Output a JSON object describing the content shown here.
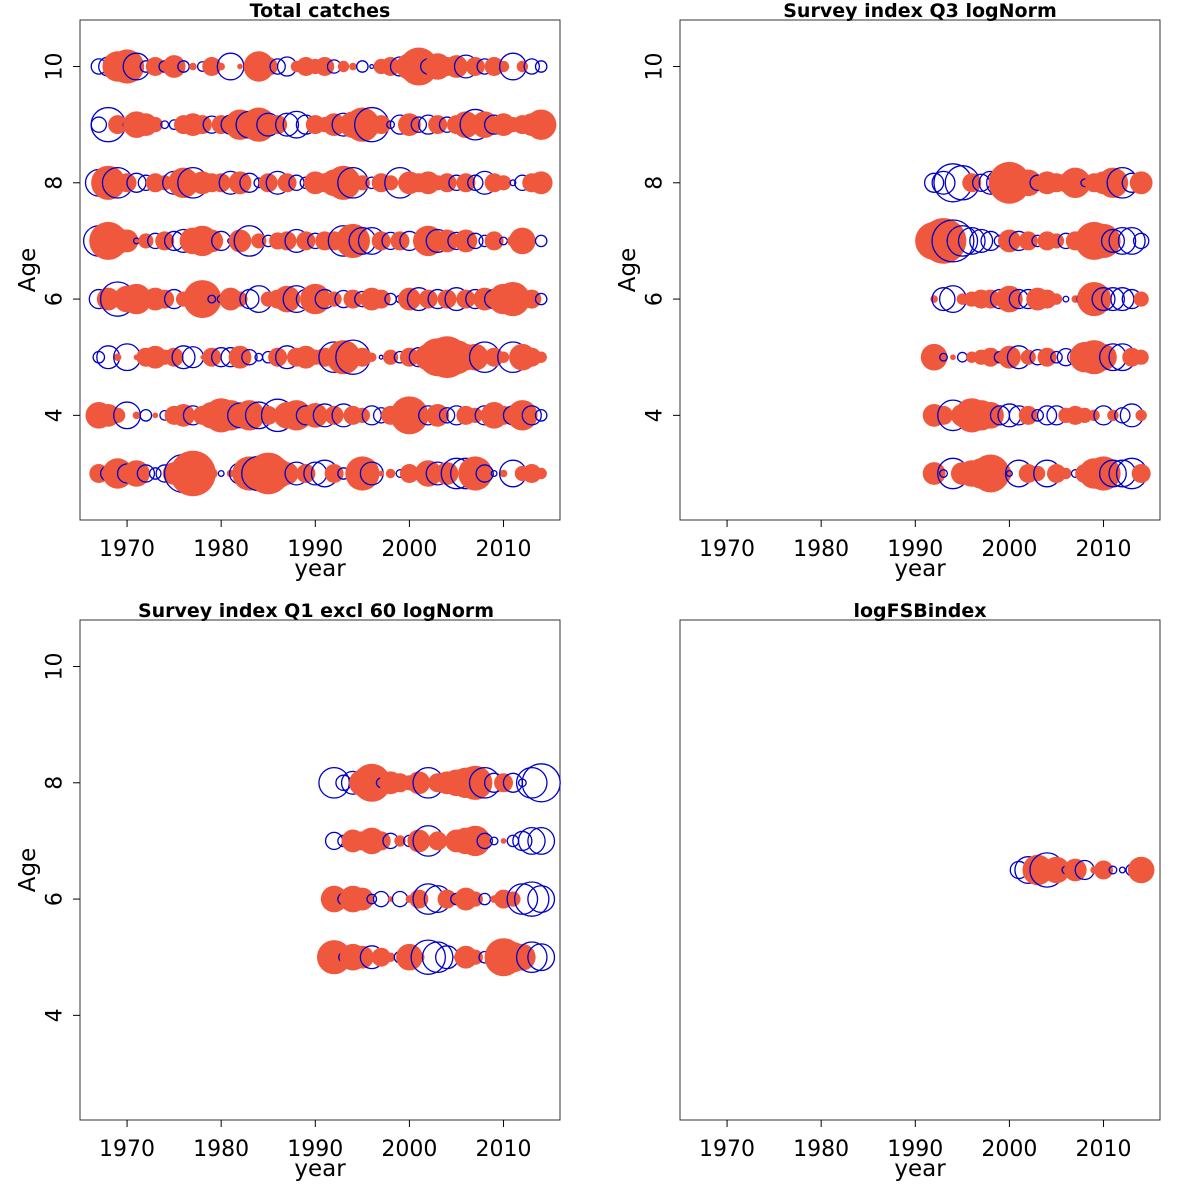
{
  "colors": {
    "positive": "#f0583e",
    "negative": "#0000cc"
  },
  "chart_data": [
    {
      "type": "scatter",
      "title": "Total catches",
      "xlabel": "year",
      "ylabel": "Age",
      "xlim": [
        1965,
        2016
      ],
      "ylim": [
        2.2,
        10.8
      ],
      "xticks": [
        1970,
        1980,
        1990,
        2000,
        2010
      ],
      "yticks": [
        4,
        6,
        8,
        10
      ],
      "years": [
        1967,
        1968,
        1969,
        1970,
        1971,
        1972,
        1973,
        1974,
        1975,
        1976,
        1977,
        1978,
        1979,
        1980,
        1981,
        1982,
        1983,
        1984,
        1985,
        1986,
        1987,
        1988,
        1989,
        1990,
        1991,
        1992,
        1993,
        1994,
        1995,
        1996,
        1997,
        1998,
        1999,
        2000,
        2001,
        2002,
        2003,
        2004,
        2005,
        2006,
        2007,
        2008,
        2009,
        2010,
        2011,
        2012,
        2013,
        2014
      ],
      "rows": [
        {
          "age": 3,
          "r": [
            1.0,
            -0.8,
            1.6,
            -1.0,
            1.4,
            -0.9,
            -0.6,
            -0.9,
            1.2,
            -2.0,
            2.4,
            1.4,
            0.6,
            -0.3,
            0.4,
            -1.1,
            1.8,
            -1.8,
            2.2,
            1.6,
            1.2,
            -1.2,
            1.0,
            -1.2,
            -1.4,
            1.0,
            -0.6,
            -0.3,
            1.8,
            -1.2,
            0.3,
            0.5,
            -0.4,
            1.0,
            0.6,
            1.4,
            -1.2,
            1.2,
            -1.6,
            -1.6,
            1.8,
            -0.9,
            -0.3,
            0.4,
            -1.4,
            0.8,
            1.0,
            0.6
          ]
        },
        {
          "age": 4,
          "r": [
            1.4,
            1.2,
            0.8,
            -1.4,
            0.4,
            -0.6,
            0.3,
            -0.5,
            1.0,
            1.2,
            -1.0,
            1.0,
            1.4,
            1.8,
            1.6,
            -1.3,
            1.6,
            -1.4,
            1.0,
            -1.7,
            1.4,
            1.6,
            -1.0,
            1.3,
            -1.2,
            1.0,
            -1.2,
            1.0,
            0.8,
            -1.0,
            -0.8,
            1.0,
            -0.9,
            2.0,
            1.0,
            -1.0,
            1.2,
            -0.8,
            -1.0,
            1.0,
            0.8,
            -1.0,
            1.4,
            1.0,
            -1.0,
            1.6,
            -1.0,
            -0.6
          ]
        },
        {
          "age": 5,
          "r": [
            -0.6,
            -1.2,
            0.4,
            -1.4,
            0.3,
            1.0,
            1.2,
            0.8,
            1.0,
            -1.2,
            -1.1,
            0.2,
            1.0,
            -1.0,
            -1.0,
            1.2,
            -0.8,
            -0.4,
            -0.6,
            1.0,
            -1.2,
            1.0,
            1.2,
            0.8,
            1.0,
            -1.6,
            1.8,
            -1.8,
            1.0,
            0.5,
            -0.2,
            0.8,
            -0.6,
            1.0,
            -1.0,
            1.4,
            2.0,
            2.2,
            1.8,
            1.4,
            1.4,
            -1.6,
            1.0,
            0.6,
            -1.6,
            1.4,
            1.0,
            0.6
          ]
        },
        {
          "age": 6,
          "r": [
            -1.0,
            1.2,
            -1.8,
            1.4,
            1.6,
            1.0,
            1.2,
            1.0,
            -1.0,
            0.8,
            1.0,
            2.0,
            -0.4,
            -0.4,
            1.2,
            0.8,
            -1.0,
            -1.4,
            0.8,
            1.0,
            1.4,
            -1.4,
            -1.0,
            1.6,
            -1.0,
            0.8,
            -0.9,
            1.0,
            -0.8,
            1.2,
            1.0,
            -0.6,
            -0.4,
            1.2,
            -1.2,
            1.0,
            -1.0,
            1.0,
            -1.2,
            1.0,
            -1.0,
            1.2,
            -1.0,
            1.6,
            1.8,
            1.0,
            1.0,
            -0.6
          ]
        },
        {
          "age": 7,
          "r": [
            -1.6,
            2.0,
            1.4,
            1.2,
            -0.3,
            0.8,
            -0.8,
            1.0,
            -1.0,
            -1.2,
            1.4,
            1.6,
            1.2,
            -1.0,
            -0.3,
            1.2,
            -1.6,
            0.8,
            -0.6,
            0.9,
            1.0,
            -1.2,
            1.0,
            -0.8,
            1.0,
            1.0,
            -1.6,
            1.8,
            -1.4,
            -1.4,
            1.0,
            -0.9,
            1.0,
            -1.0,
            0.6,
            1.6,
            -1.2,
            1.2,
            -0.9,
            1.2,
            -0.8,
            -0.6,
            1.0,
            -0.4,
            0.6,
            1.4,
            0.4,
            -0.6
          ]
        },
        {
          "age": 8,
          "r": [
            -1.4,
            1.8,
            -1.6,
            1.0,
            -1.0,
            -0.8,
            1.0,
            0.8,
            -1.2,
            1.6,
            -1.6,
            1.2,
            1.0,
            1.0,
            -1.2,
            1.2,
            -1.0,
            -0.5,
            1.0,
            -1.2,
            1.0,
            -0.8,
            -0.6,
            1.2,
            1.0,
            1.4,
            1.8,
            -1.6,
            0.8,
            -0.6,
            1.0,
            0.8,
            -1.6,
            1.2,
            1.0,
            1.2,
            0.8,
            1.0,
            -0.8,
            1.0,
            -0.8,
            -1.2,
            1.0,
            0.8,
            -0.3,
            -0.8,
            1.0,
            1.2
          ]
        },
        {
          "age": 9,
          "r": [
            -0.8,
            -1.8,
            1.0,
            -0.4,
            1.4,
            1.2,
            0.8,
            -0.4,
            -0.5,
            1.0,
            1.2,
            1.0,
            -0.9,
            1.0,
            -1.0,
            1.6,
            -1.4,
            1.8,
            -1.2,
            1.0,
            -1.2,
            -1.4,
            -1.0,
            1.0,
            0.8,
            1.2,
            -1.2,
            1.4,
            1.8,
            -1.8,
            1.0,
            -0.4,
            -1.0,
            1.2,
            -0.8,
            -1.0,
            1.0,
            -0.8,
            1.0,
            1.4,
            -1.6,
            1.4,
            -1.0,
            1.2,
            0.8,
            1.0,
            1.2,
            1.6
          ]
        },
        {
          "age": 10,
          "r": [
            -0.8,
            -1.0,
            1.6,
            1.8,
            -1.4,
            -0.6,
            1.0,
            -0.6,
            1.2,
            -0.6,
            0.4,
            -0.5,
            1.0,
            0.4,
            -1.4,
            0.3,
            -0.6,
            1.6,
            1.0,
            -0.8,
            -1.0,
            0.6,
            1.0,
            0.8,
            1.0,
            -0.7,
            0.6,
            0.4,
            -0.6,
            -0.2,
            0.8,
            1.0,
            -1.0,
            1.4,
            2.0,
            -0.8,
            1.4,
            1.0,
            1.2,
            -1.2,
            1.0,
            -0.8,
            1.0,
            0.6,
            -1.4,
            0.6,
            -0.8,
            -0.6
          ]
        }
      ]
    },
    {
      "type": "scatter",
      "title": "Survey index Q3 logNorm",
      "xlabel": "year",
      "ylabel": "Age",
      "xlim": [
        1965,
        2016
      ],
      "ylim": [
        2.2,
        10.8
      ],
      "xticks": [
        1970,
        1980,
        1990,
        2000,
        2010
      ],
      "yticks": [
        4,
        6,
        8,
        10
      ],
      "years": [
        1992,
        1993,
        1994,
        1995,
        1996,
        1997,
        1998,
        1999,
        2000,
        2001,
        2002,
        2003,
        2004,
        2005,
        2006,
        2007,
        2008,
        2009,
        2010,
        2011,
        2012,
        2013,
        2014
      ],
      "rows": [
        {
          "age": 3,
          "r": [
            1.2,
            -0.4,
            -1.6,
            1.2,
            1.4,
            1.6,
            2.0,
            1.2,
            -0.3,
            -1.4,
            1.0,
            0.8,
            -1.4,
            1.0,
            0.6,
            -0.4,
            1.0,
            1.6,
            1.8,
            -1.4,
            -1.4,
            -1.6,
            1.0
          ]
        },
        {
          "age": 4,
          "r": [
            1.2,
            1.0,
            -1.6,
            1.2,
            1.8,
            1.6,
            1.4,
            -1.0,
            -1.2,
            -1.0,
            1.0,
            -0.6,
            -1.0,
            -1.0,
            0.8,
            1.0,
            0.8,
            0.6,
            -1.0,
            0.6,
            -0.8,
            -1.2,
            0.6
          ]
        },
        {
          "age": 5,
          "r": [
            1.4,
            -0.4,
            0.3,
            -0.5,
            0.6,
            0.8,
            1.0,
            -0.6,
            1.2,
            -1.2,
            0.8,
            -0.8,
            1.0,
            -0.6,
            -0.9,
            -0.8,
            1.6,
            1.8,
            1.4,
            -1.4,
            -1.4,
            1.0,
            0.8
          ]
        },
        {
          "age": 6,
          "r": [
            0.4,
            -1.2,
            -1.4,
            0.6,
            0.8,
            1.0,
            1.0,
            -1.0,
            1.4,
            -1.0,
            -1.0,
            1.2,
            1.0,
            0.6,
            -0.3,
            0.4,
            -0.8,
            1.8,
            -1.2,
            -1.2,
            -1.2,
            -1.0,
            0.8
          ]
        },
        {
          "age": 7,
          "r": [
            2.0,
            2.4,
            -2.2,
            -1.6,
            -1.4,
            -1.2,
            -1.0,
            -0.6,
            1.2,
            -1.0,
            1.0,
            -0.6,
            1.0,
            0.8,
            -0.8,
            1.0,
            -0.6,
            2.0,
            1.8,
            -1.2,
            -1.4,
            -1.4,
            -0.8
          ]
        },
        {
          "age": 8,
          "r": [
            -1.0,
            -1.2,
            -2.0,
            -1.8,
            1.0,
            -0.9,
            -1.2,
            -1.4,
            2.2,
            -0.2,
            1.4,
            -0.8,
            1.2,
            1.0,
            1.0,
            1.6,
            -0.4,
            1.0,
            1.2,
            1.6,
            -1.6,
            -1.0,
            1.2
          ]
        }
      ]
    },
    {
      "type": "scatter",
      "title": "Survey index Q1 excl 60 logNorm",
      "xlabel": "year",
      "ylabel": "Age",
      "xlim": [
        1965,
        2016
      ],
      "ylim": [
        2.2,
        10.8
      ],
      "xticks": [
        1970,
        1980,
        1990,
        2000,
        2010
      ],
      "yticks": [
        4,
        6,
        8,
        10
      ],
      "years": [
        1992,
        1993,
        1994,
        1995,
        1996,
        1997,
        1998,
        1999,
        2000,
        2001,
        2002,
        2003,
        2004,
        2005,
        2006,
        2007,
        2008,
        2009,
        2010,
        2011,
        2012,
        2013,
        2014
      ],
      "rows": [
        {
          "age": 5,
          "r": [
            1.8,
            -0.5,
            1.4,
            1.2,
            -1.2,
            1.0,
            0.5,
            -0.6,
            1.4,
            0.6,
            -1.8,
            -1.6,
            -1.2,
            0.3,
            1.2,
            0.8,
            -0.6,
            -0.6,
            2.0,
            1.6,
            1.4,
            -1.6,
            -1.4
          ]
        },
        {
          "age": 6,
          "r": [
            1.4,
            -0.6,
            1.4,
            1.2,
            -0.5,
            -0.8,
            0.3,
            -0.8,
            0.4,
            1.0,
            -1.6,
            -1.4,
            1.0,
            -0.6,
            1.2,
            0.8,
            -0.6,
            0.4,
            1.0,
            0.8,
            -1.6,
            -1.8,
            -1.4
          ]
        },
        {
          "age": 7,
          "r": [
            -0.9,
            -0.6,
            1.2,
            1.0,
            1.4,
            1.0,
            -0.8,
            0.6,
            -0.6,
            1.2,
            -1.6,
            1.0,
            0.4,
            1.2,
            1.4,
            1.6,
            -0.8,
            -0.4,
            0.3,
            -0.6,
            -1.0,
            -1.4,
            -1.4
          ]
        },
        {
          "age": 8,
          "r": [
            -1.6,
            -0.8,
            -1.2,
            1.4,
            2.0,
            -0.5,
            1.2,
            1.0,
            0.8,
            1.2,
            -1.6,
            1.0,
            1.2,
            1.4,
            1.6,
            1.8,
            -1.6,
            -1.0,
            1.0,
            -1.0,
            -0.4,
            -1.6,
            -2.0
          ]
        }
      ]
    },
    {
      "type": "scatter",
      "title": "logFSBindex",
      "xlabel": "year",
      "ylabel": "",
      "xlim": [
        1965,
        2016
      ],
      "ylim": [
        2.2,
        10.8
      ],
      "xticks": [
        1970,
        1980,
        1990,
        2000,
        2010
      ],
      "yticks": [],
      "years": [
        2001,
        2002,
        2003,
        2004,
        2005,
        2006,
        2007,
        2008,
        2009,
        2010,
        2011,
        2012,
        2013,
        2014
      ],
      "rows": [
        {
          "age": 6.5,
          "r": [
            -0.9,
            -1.4,
            1.6,
            -1.8,
            1.4,
            -0.4,
            1.2,
            -1.0,
            0.4,
            1.0,
            -0.4,
            -0.3,
            -0.6,
            1.4
          ]
        }
      ]
    }
  ]
}
